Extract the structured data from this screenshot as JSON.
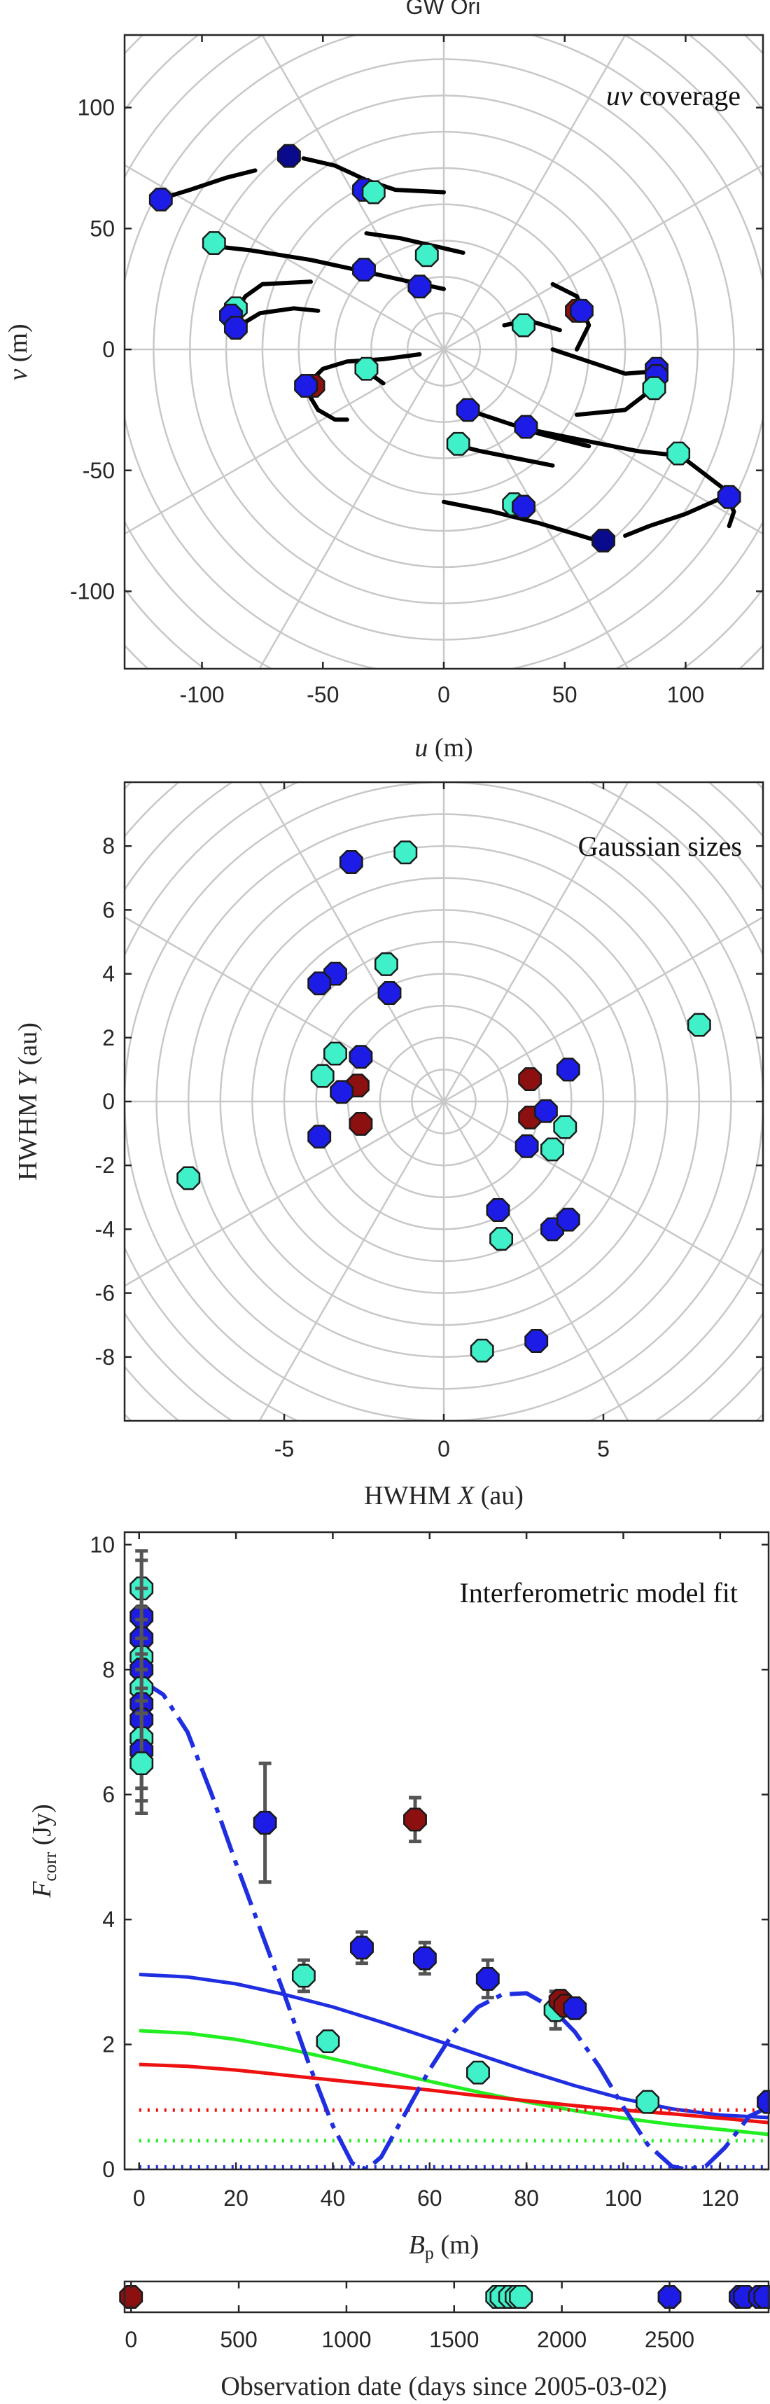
{
  "figure_title": "GW Ori",
  "chart_data": [
    {
      "type": "scatter",
      "title": "uv coverage",
      "title_math": "uv",
      "title_rest": " coverage",
      "xlabel_math": "u",
      "xlabel_rest": " (m)",
      "ylabel_math": "v",
      "ylabel_rest": " (m)",
      "xlim": [
        -132,
        132
      ],
      "ylim": [
        -132,
        130
      ],
      "xticks": [
        -100,
        -50,
        0,
        50,
        100
      ],
      "yticks": [
        -100,
        -50,
        0,
        50,
        100
      ],
      "polar_grid": {
        "ring_step": 15,
        "ring_count": 12,
        "spoke_step_deg": 30
      },
      "grid": true,
      "tracks": [
        [
          [
            -58,
            79
          ],
          [
            -45,
            76
          ],
          [
            -32,
            70
          ],
          [
            -20,
            66
          ],
          [
            0,
            65
          ]
        ],
        [
          [
            -118,
            62
          ],
          [
            -105,
            66
          ],
          [
            -90,
            71
          ],
          [
            -78,
            74
          ]
        ],
        [
          [
            -98,
            43
          ],
          [
            -80,
            41
          ],
          [
            -55,
            37
          ],
          [
            -32,
            32
          ],
          [
            -14,
            28
          ],
          [
            0,
            25
          ]
        ],
        [
          [
            -32,
            48
          ],
          [
            -18,
            46
          ],
          [
            -5,
            43
          ],
          [
            8,
            40
          ]
        ],
        [
          [
            -88,
            13
          ],
          [
            -82,
            22
          ],
          [
            -75,
            27
          ],
          [
            -55,
            28
          ]
        ],
        [
          [
            -86,
            9
          ],
          [
            -76,
            15
          ],
          [
            -62,
            17
          ],
          [
            -52,
            16
          ]
        ],
        [
          [
            -58,
            -16
          ],
          [
            -50,
            -8
          ],
          [
            -40,
            -5
          ],
          [
            -25,
            -4
          ],
          [
            -10,
            -2
          ]
        ],
        [
          [
            -58,
            -15
          ],
          [
            -52,
            -25
          ],
          [
            -45,
            -29
          ],
          [
            -40,
            -29
          ]
        ],
        [
          [
            -32,
            -9
          ],
          [
            -25,
            -14
          ]
        ],
        [
          [
            48,
            8
          ],
          [
            35,
            12
          ],
          [
            25,
            10
          ]
        ],
        [
          [
            45,
            27
          ],
          [
            55,
            22
          ],
          [
            60,
            10
          ],
          [
            55,
            0
          ]
        ],
        [
          [
            45,
            0
          ],
          [
            60,
            -5
          ],
          [
            75,
            -10
          ],
          [
            88,
            -9
          ]
        ],
        [
          [
            88,
            -15
          ],
          [
            75,
            -25
          ],
          [
            55,
            -27
          ]
        ],
        [
          [
            10,
            -25
          ],
          [
            25,
            -30
          ],
          [
            40,
            -35
          ],
          [
            60,
            -40
          ]
        ],
        [
          [
            30,
            -32
          ],
          [
            55,
            -37
          ],
          [
            80,
            -42
          ],
          [
            98,
            -44
          ]
        ],
        [
          [
            98,
            -44
          ],
          [
            115,
            -57
          ],
          [
            120,
            -67
          ],
          [
            118,
            -73
          ]
        ],
        [
          [
            3,
            -39
          ],
          [
            15,
            -42
          ],
          [
            30,
            -45
          ],
          [
            45,
            -48
          ]
        ],
        [
          [
            0,
            -63
          ],
          [
            20,
            -67
          ],
          [
            40,
            -72
          ],
          [
            60,
            -78
          ],
          [
            67,
            -80
          ]
        ],
        [
          [
            118,
            -60
          ],
          [
            100,
            -68
          ],
          [
            85,
            -73
          ],
          [
            75,
            -77
          ]
        ]
      ],
      "points": [
        {
          "x": -64,
          "y": 80,
          "c": "d"
        },
        {
          "x": -33,
          "y": 66,
          "c": "b"
        },
        {
          "x": -29,
          "y": 65,
          "c": "c"
        },
        {
          "x": -117,
          "y": 62,
          "c": "b"
        },
        {
          "x": -95,
          "y": 44,
          "c": "c"
        },
        {
          "x": -33,
          "y": 33,
          "c": "b"
        },
        {
          "x": -10,
          "y": 26,
          "c": "b"
        },
        {
          "x": -7,
          "y": 39,
          "c": "c"
        },
        {
          "x": -86,
          "y": 17,
          "c": "c"
        },
        {
          "x": -88,
          "y": 14,
          "c": "b"
        },
        {
          "x": -86,
          "y": 9,
          "c": "b"
        },
        {
          "x": -54,
          "y": -15,
          "c": "r"
        },
        {
          "x": -57,
          "y": -15,
          "c": "b"
        },
        {
          "x": -32,
          "y": -8,
          "c": "c"
        },
        {
          "x": 55,
          "y": 16,
          "c": "r"
        },
        {
          "x": 57,
          "y": 16,
          "c": "b"
        },
        {
          "x": 33,
          "y": 10,
          "c": "c"
        },
        {
          "x": 88,
          "y": -8,
          "c": "b"
        },
        {
          "x": 88,
          "y": -11,
          "c": "b"
        },
        {
          "x": 87,
          "y": -16,
          "c": "c"
        },
        {
          "x": 10,
          "y": -25,
          "c": "b"
        },
        {
          "x": 34,
          "y": -32,
          "c": "b"
        },
        {
          "x": 6,
          "y": -39,
          "c": "c"
        },
        {
          "x": 97,
          "y": -43,
          "c": "c"
        },
        {
          "x": 118,
          "y": -61,
          "c": "b"
        },
        {
          "x": 29,
          "y": -64,
          "c": "c"
        },
        {
          "x": 33,
          "y": -65,
          "c": "b"
        },
        {
          "x": 66,
          "y": -79,
          "c": "d"
        }
      ]
    },
    {
      "type": "scatter",
      "title": "Gaussian sizes",
      "xlabel_pre": "HWHM ",
      "xlabel_math": "X",
      "xlabel_rest": " (au)",
      "ylabel_pre": "HWHM ",
      "ylabel_math": "Y",
      "ylabel_rest": " (au)",
      "xlim": [
        -10,
        10
      ],
      "ylim": [
        -10,
        10
      ],
      "xticks": [
        -5,
        0,
        5
      ],
      "yticks": [
        -8,
        -6,
        -4,
        -2,
        0,
        2,
        4,
        6,
        8
      ],
      "polar_grid": {
        "ring_step": 1,
        "ring_count": 15,
        "spoke_step_deg": 30
      },
      "grid": true,
      "points": [
        {
          "x": -2.9,
          "y": 7.5,
          "c": "b"
        },
        {
          "x": -1.2,
          "y": 7.8,
          "c": "c"
        },
        {
          "x": -3.4,
          "y": 4.0,
          "c": "b"
        },
        {
          "x": -1.8,
          "y": 4.3,
          "c": "c"
        },
        {
          "x": -3.9,
          "y": 3.7,
          "c": "b"
        },
        {
          "x": -1.7,
          "y": 3.4,
          "c": "b"
        },
        {
          "x": -3.4,
          "y": 1.5,
          "c": "c"
        },
        {
          "x": -2.6,
          "y": 1.4,
          "c": "b"
        },
        {
          "x": -3.8,
          "y": 0.8,
          "c": "c"
        },
        {
          "x": -2.7,
          "y": 0.5,
          "c": "r"
        },
        {
          "x": -3.2,
          "y": 0.3,
          "c": "b"
        },
        {
          "x": -2.6,
          "y": -0.7,
          "c": "r"
        },
        {
          "x": -3.9,
          "y": -1.1,
          "c": "b"
        },
        {
          "x": -8.0,
          "y": -2.4,
          "c": "c"
        },
        {
          "x": 2.7,
          "y": 0.7,
          "c": "r"
        },
        {
          "x": 3.9,
          "y": 1.0,
          "c": "b"
        },
        {
          "x": 8.0,
          "y": 2.4,
          "c": "c"
        },
        {
          "x": 2.7,
          "y": -0.5,
          "c": "r"
        },
        {
          "x": 3.2,
          "y": -0.3,
          "c": "b"
        },
        {
          "x": 3.8,
          "y": -0.8,
          "c": "c"
        },
        {
          "x": 2.6,
          "y": -1.4,
          "c": "b"
        },
        {
          "x": 3.4,
          "y": -1.5,
          "c": "c"
        },
        {
          "x": 1.7,
          "y": -3.4,
          "c": "b"
        },
        {
          "x": 1.8,
          "y": -4.3,
          "c": "c"
        },
        {
          "x": 3.4,
          "y": -4.0,
          "c": "b"
        },
        {
          "x": 3.9,
          "y": -3.7,
          "c": "b"
        },
        {
          "x": 1.2,
          "y": -7.8,
          "c": "c"
        },
        {
          "x": 2.9,
          "y": -7.5,
          "c": "b"
        }
      ]
    },
    {
      "type": "line",
      "title": "Interferometric model fit",
      "xlabel_math": "B",
      "xlabel_sub": "p",
      "xlabel_rest": " (m)",
      "ylabel_math": "F",
      "ylabel_sub": "corr",
      "ylabel_rest": " (Jy)",
      "xlim": [
        -3,
        130
      ],
      "ylim": [
        0,
        10.2
      ],
      "xticks": [
        0,
        20,
        40,
        60,
        80,
        100,
        120
      ],
      "yticks": [
        0,
        2,
        4,
        6,
        8,
        10
      ],
      "grid": false,
      "series": [
        {
          "color": "#1f2ee0",
          "style": "solid",
          "x": [
            0,
            10,
            20,
            30,
            40,
            50,
            60,
            70,
            80,
            90,
            100,
            110,
            120,
            130
          ],
          "values": [
            3.12,
            3.08,
            2.97,
            2.8,
            2.6,
            2.36,
            2.1,
            1.84,
            1.58,
            1.34,
            1.13,
            0.97,
            0.87,
            0.83
          ]
        },
        {
          "color": "#22ee22",
          "style": "solid",
          "x": [
            0,
            10,
            20,
            30,
            40,
            50,
            60,
            70,
            80,
            90,
            100,
            110,
            120,
            130
          ],
          "values": [
            2.22,
            2.18,
            2.08,
            1.94,
            1.77,
            1.59,
            1.41,
            1.24,
            1.08,
            0.94,
            0.82,
            0.72,
            0.64,
            0.56
          ]
        },
        {
          "color": "#ee1111",
          "style": "solid",
          "x": [
            0,
            10,
            20,
            30,
            40,
            50,
            60,
            70,
            80,
            90,
            100,
            110,
            120,
            130
          ],
          "values": [
            1.68,
            1.65,
            1.59,
            1.51,
            1.43,
            1.35,
            1.27,
            1.18,
            1.1,
            1.02,
            0.95,
            0.89,
            0.82,
            0.75
          ]
        },
        {
          "color": "#ee1111",
          "style": "dotted",
          "x": [
            0,
            130
          ],
          "values": [
            0.95,
            0.95
          ]
        },
        {
          "color": "#22ee22",
          "style": "dotted",
          "x": [
            0,
            130
          ],
          "values": [
            0.46,
            0.46
          ]
        },
        {
          "color": "#1f2ee0",
          "style": "dotted",
          "x": [
            0,
            130
          ],
          "values": [
            0.04,
            0.04
          ]
        },
        {
          "color": "#1f2ee0",
          "style": "dash",
          "x": [
            0,
            5,
            10,
            15,
            20,
            25,
            30,
            35,
            40,
            44,
            47,
            50,
            55,
            60,
            65,
            70,
            75,
            80,
            85,
            90,
            95,
            100,
            105,
            110,
            113,
            117,
            121,
            126,
            130
          ],
          "values": [
            7.85,
            7.6,
            7.0,
            6.0,
            4.9,
            3.85,
            2.8,
            1.7,
            0.7,
            0.1,
            0.0,
            0.2,
            0.9,
            1.6,
            2.2,
            2.6,
            2.8,
            2.82,
            2.6,
            2.2,
            1.65,
            1.0,
            0.4,
            0.05,
            0.0,
            0.05,
            0.35,
            0.85,
            1.0
          ]
        }
      ],
      "points": [
        {
          "x": 0.5,
          "y": 9.3,
          "c": "c",
          "e": 0.6
        },
        {
          "x": 0.5,
          "y": 8.85,
          "c": "b",
          "e": 0.9
        },
        {
          "x": 0.5,
          "y": 8.5,
          "c": "b",
          "e": 0.8
        },
        {
          "x": 0.5,
          "y": 8.2,
          "c": "c",
          "e": 0.8
        },
        {
          "x": 0.5,
          "y": 8.0,
          "c": "b",
          "e": 0.8
        },
        {
          "x": 0.5,
          "y": 7.7,
          "c": "c",
          "e": 0.8
        },
        {
          "x": 0.5,
          "y": 7.45,
          "c": "b",
          "e": 0.8
        },
        {
          "x": 0.5,
          "y": 7.2,
          "c": "b",
          "e": 0.8
        },
        {
          "x": 0.5,
          "y": 6.9,
          "c": "c",
          "e": 0.8
        },
        {
          "x": 0.5,
          "y": 6.7,
          "c": "b",
          "e": 0.8
        },
        {
          "x": 0.5,
          "y": 6.5,
          "c": "c",
          "e": 0.8
        },
        {
          "x": 26,
          "y": 5.55,
          "c": "b",
          "e": 0.95
        },
        {
          "x": 57,
          "y": 5.6,
          "c": "r",
          "e": 0.35
        },
        {
          "x": 34,
          "y": 3.1,
          "c": "c",
          "e": 0.25
        },
        {
          "x": 46,
          "y": 3.55,
          "c": "b",
          "e": 0.25
        },
        {
          "x": 59,
          "y": 3.38,
          "c": "b",
          "e": 0.25
        },
        {
          "x": 72,
          "y": 3.05,
          "c": "b",
          "e": 0.3
        },
        {
          "x": 39,
          "y": 2.05,
          "c": "c",
          "e": 0.1
        },
        {
          "x": 70,
          "y": 1.55,
          "c": "c",
          "e": 0.1
        },
        {
          "x": 86,
          "y": 2.55,
          "c": "c",
          "e": 0.3
        },
        {
          "x": 87,
          "y": 2.7,
          "c": "r",
          "e": 0.1
        },
        {
          "x": 88,
          "y": 2.62,
          "c": "r",
          "e": 0.1
        },
        {
          "x": 90,
          "y": 2.58,
          "c": "b",
          "e": 0.1
        },
        {
          "x": 105,
          "y": 1.08,
          "c": "c",
          "e": 0.1
        },
        {
          "x": 130,
          "y": 1.08,
          "c": "b",
          "e": 0.1
        }
      ]
    },
    {
      "type": "scatter",
      "xlabel": "Observation date (days since 2005-03-02)",
      "xlim": [
        -30,
        2960
      ],
      "xticks": [
        0,
        500,
        1000,
        1500,
        2000,
        2500
      ],
      "grid": false,
      "points": [
        {
          "x": 0,
          "c": "r"
        },
        {
          "x": 1700,
          "c": "c"
        },
        {
          "x": 1720,
          "c": "c"
        },
        {
          "x": 1760,
          "c": "c"
        },
        {
          "x": 1790,
          "c": "c"
        },
        {
          "x": 1810,
          "c": "c"
        },
        {
          "x": 2500,
          "c": "b"
        },
        {
          "x": 2830,
          "c": "b"
        },
        {
          "x": 2850,
          "c": "b"
        },
        {
          "x": 2920,
          "c": "b"
        },
        {
          "x": 2945,
          "c": "b"
        }
      ]
    }
  ],
  "marker_colors": {
    "b": "#1c1ce6",
    "c": "#40f0c8",
    "r": "#8c1010",
    "d": "#0a0a8c"
  }
}
